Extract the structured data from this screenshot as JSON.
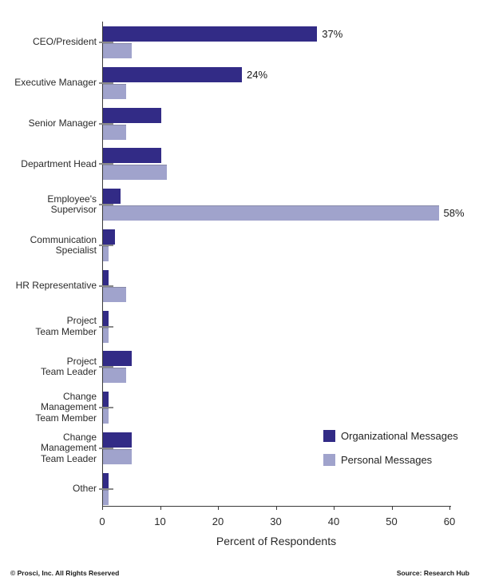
{
  "chart_data": {
    "type": "bar",
    "orientation": "horizontal",
    "title": "",
    "xlabel": "Percent of Respondents",
    "xlim": [
      0,
      60
    ],
    "xticks": [
      0,
      10,
      20,
      30,
      40,
      50,
      60
    ],
    "grid": false,
    "legend_position": "lower right inside",
    "colors": {
      "organizational": "#322b86",
      "personal": "#a0a3cc",
      "axis": "#3a3a3a",
      "category_tick": "#8a8a8a"
    },
    "categories": [
      "CEO/President",
      "Executive Manager",
      "Senior Manager",
      "Department Head",
      "Employee's Supervisor",
      "Communication Specialist",
      "HR Representative",
      "Project Team Member",
      "Project Team Leader",
      "Change Management Team Member",
      "Change Management Team Leader",
      "Other"
    ],
    "category_label_lines": [
      [
        "CEO/President"
      ],
      [
        "Executive Manager"
      ],
      [
        "Senior Manager"
      ],
      [
        "Department Head"
      ],
      [
        "Employee's",
        "Supervisor"
      ],
      [
        "Communication",
        "Specialist"
      ],
      [
        "HR Representative"
      ],
      [
        "Project",
        "Team Member"
      ],
      [
        "Project",
        "Team Leader"
      ],
      [
        "Change",
        "Management",
        "Team Member"
      ],
      [
        "Change",
        "Management",
        "Team Leader"
      ],
      [
        "Other"
      ]
    ],
    "series": [
      {
        "name": "Organizational Messages",
        "color": "#322b86",
        "values": [
          37,
          24,
          10,
          10,
          3,
          2,
          1,
          1,
          5,
          1,
          5,
          1
        ],
        "labels": [
          "37%",
          "24%",
          "",
          "",
          "",
          "",
          "",
          "",
          "",
          "",
          "",
          ""
        ]
      },
      {
        "name": "Personal Messages",
        "color": "#a0a3cc",
        "values": [
          5,
          4,
          4,
          11,
          58,
          1,
          4,
          1,
          4,
          1,
          5,
          1
        ],
        "labels": [
          "",
          "",
          "",
          "",
          "58%",
          "",
          "",
          "",
          "",
          "",
          "",
          ""
        ]
      }
    ]
  },
  "footer": {
    "left": "© Prosci, Inc. All Rights Reserved",
    "right": "Source: Research Hub"
  }
}
